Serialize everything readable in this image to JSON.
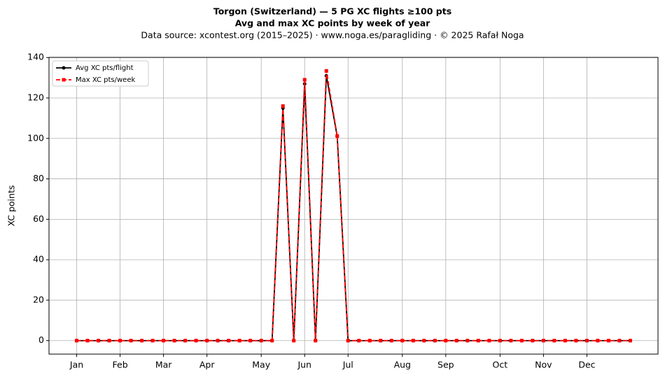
{
  "chart_data": {
    "type": "line",
    "title": "Torgon (Switzerland)  —  5 PG XC flights ≥100 pts",
    "subtitle": "Avg and max XC points by week of year",
    "source": "Data source: xcontest.org (2015–2025)  ·  www.noga.es/paragliding  ·  © 2025 Rafał Noga",
    "ylabel": "XC points",
    "x": [
      1,
      2,
      3,
      4,
      5,
      6,
      7,
      8,
      9,
      10,
      11,
      12,
      13,
      14,
      15,
      16,
      17,
      18,
      19,
      20,
      21,
      22,
      23,
      24,
      25,
      26,
      27,
      28,
      29,
      30,
      31,
      32,
      33,
      34,
      35,
      36,
      37,
      38,
      39,
      40,
      41,
      42,
      43,
      44,
      45,
      46,
      47,
      48,
      49,
      50,
      51,
      52
    ],
    "series": [
      {
        "name": "Avg XC pts/flight",
        "color": "#000000",
        "marker": "circle",
        "dash": false,
        "values": [
          0,
          0,
          0,
          0,
          0,
          0,
          0,
          0,
          0,
          0,
          0,
          0,
          0,
          0,
          0,
          0,
          0,
          0,
          0,
          115,
          0,
          127,
          0,
          131,
          101,
          0,
          0,
          0,
          0,
          0,
          0,
          0,
          0,
          0,
          0,
          0,
          0,
          0,
          0,
          0,
          0,
          0,
          0,
          0,
          0,
          0,
          0,
          0,
          0,
          0,
          0,
          0
        ]
      },
      {
        "name": "Max XC pts/week",
        "color": "#ff0000",
        "marker": "square",
        "dash": true,
        "values": [
          0,
          0,
          0,
          0,
          0,
          0,
          0,
          0,
          0,
          0,
          0,
          0,
          0,
          0,
          0,
          0,
          0,
          0,
          0,
          116,
          0,
          129,
          0,
          133.4,
          101.2,
          0,
          0,
          0,
          0,
          0,
          0,
          0,
          0,
          0,
          0,
          0,
          0,
          0,
          0,
          0,
          0,
          0,
          0,
          0,
          0,
          0,
          0,
          0,
          0,
          0,
          0,
          0
        ]
      }
    ],
    "xlim": [
      -1.55,
      54.55
    ],
    "xticks": [
      {
        "value": 1,
        "label": "Jan"
      },
      {
        "value": 5,
        "label": "Feb"
      },
      {
        "value": 9,
        "label": "Mar"
      },
      {
        "value": 13,
        "label": "Apr"
      },
      {
        "value": 18,
        "label": "May"
      },
      {
        "value": 22,
        "label": "Jun"
      },
      {
        "value": 26,
        "label": "Jul"
      },
      {
        "value": 31,
        "label": "Aug"
      },
      {
        "value": 35,
        "label": "Sep"
      },
      {
        "value": 40,
        "label": "Oct"
      },
      {
        "value": 44,
        "label": "Nov"
      },
      {
        "value": 48,
        "label": "Dec"
      }
    ],
    "ylim": [
      -6.67,
      140.07
    ],
    "yticks": [
      0,
      20,
      40,
      60,
      80,
      100,
      120,
      140
    ],
    "grid": true,
    "legend": "upper left"
  }
}
